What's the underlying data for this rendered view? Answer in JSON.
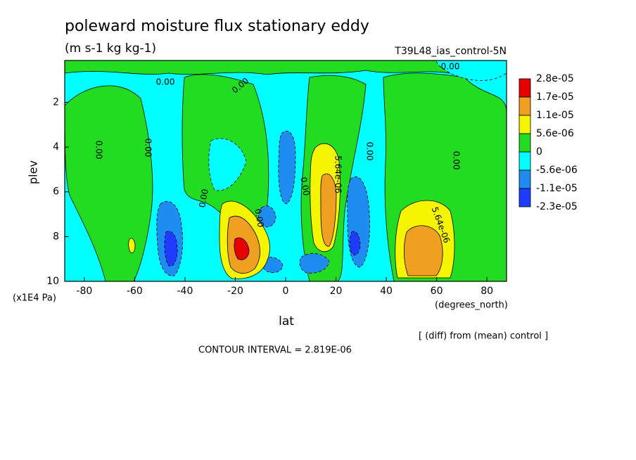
{
  "chart_data": {
    "type": "contour",
    "title": "poleward moisture flux stationary eddy",
    "subtitle": "(m s-1 kg kg-1)",
    "run_label": "T39L48_ias_control-5N",
    "x_label": "lat",
    "x_units": "(degrees_north)",
    "y_label": "plev",
    "y_units": "(x1E4 Pa)",
    "footnote": "[ (diff) from (mean) control ]",
    "contour_interval": "CONTOUR INTERVAL = 2.819E-06",
    "xlim": [
      -87.8,
      87.8
    ],
    "xticks": [
      -80,
      -60,
      -40,
      -20,
      0,
      20,
      40,
      60,
      80
    ],
    "ylim": [
      10,
      0.13
    ],
    "yticks": [
      2,
      4,
      6,
      8,
      10
    ],
    "colorbar": {
      "levels": [
        {
          "value": 2.8e-05,
          "label": "2.8e-05"
        },
        {
          "value": 1.7e-05,
          "label": "1.7e-05"
        },
        {
          "value": 1.1e-05,
          "label": "1.1e-05"
        },
        {
          "value": 5.6e-06,
          "label": "5.6e-06"
        },
        0,
        {
          "value": -5.6e-06,
          "label": "-5.6e-06"
        },
        {
          "value": -1.1e-05,
          "label": "-1.1e-05"
        },
        {
          "value": -2.3e-05,
          "label": "-2.3e-05"
        }
      ],
      "colors": [
        "#e60000",
        "#f0a020",
        "#f5f500",
        "#22dc22",
        "#00ffff",
        "#1e8cf0",
        "#1e3cff"
      ]
    },
    "contour_labels": [
      "0.00",
      "0.00",
      "0.00",
      "0.00",
      "0.00",
      "0.00",
      "0.00",
      "0.00",
      "0.00",
      "0.00",
      "5.64e-06",
      "5.64e-06"
    ]
  }
}
